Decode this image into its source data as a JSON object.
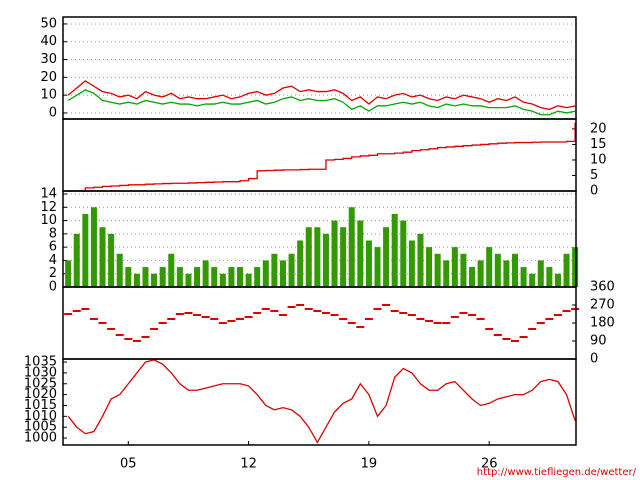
{
  "chart_data": [
    {
      "type": "line",
      "grid": true,
      "y_axis_side": "left",
      "xlim": [
        1.2,
        31.05
      ],
      "ylim": [
        -3.4,
        53.9
      ],
      "yticks": [
        0,
        10,
        20,
        30,
        40,
        50
      ],
      "x": [
        1.5,
        2,
        2.5,
        3,
        3.5,
        4,
        4.5,
        5,
        5.5,
        6,
        6.5,
        7,
        7.5,
        8,
        8.5,
        9,
        9.5,
        10,
        10.5,
        11,
        11.5,
        12,
        12.5,
        13,
        13.5,
        14,
        14.5,
        15,
        15.5,
        16,
        16.5,
        17,
        17.5,
        18,
        18.5,
        19,
        19.5,
        20,
        20.5,
        21,
        21.5,
        22,
        22.5,
        23,
        23.5,
        24,
        24.5,
        25,
        25.5,
        26,
        26.5,
        27,
        27.5,
        28,
        28.5,
        29,
        29.5,
        30,
        30.5,
        31
      ],
      "series": [
        {
          "color": "#dd0000",
          "values": [
            10,
            14,
            18,
            15,
            12,
            11,
            9,
            10,
            8,
            12,
            10,
            9,
            11,
            8,
            9,
            8,
            8,
            9,
            10,
            8,
            9,
            11,
            12,
            10,
            11,
            14,
            15,
            12,
            13,
            12,
            12,
            13,
            11,
            7,
            9,
            5,
            9,
            8,
            10,
            11,
            9,
            10,
            8,
            7,
            9,
            8,
            10,
            9,
            8,
            6,
            8,
            7,
            9,
            6,
            5,
            3,
            2,
            4,
            3,
            4
          ]
        },
        {
          "color": "#00aa00",
          "values": [
            7,
            10,
            13,
            11,
            7,
            6,
            5,
            6,
            5,
            7,
            6,
            5,
            6,
            5,
            5,
            4,
            5,
            5,
            6,
            5,
            5,
            6,
            7,
            5,
            6,
            8,
            9,
            7,
            8,
            7,
            7,
            8,
            6,
            2,
            4,
            1,
            4,
            4,
            5,
            6,
            5,
            6,
            4,
            3,
            5,
            4,
            5,
            4,
            4,
            3,
            3,
            3,
            4,
            2,
            1,
            -1,
            -1,
            1,
            0,
            1
          ]
        }
      ]
    },
    {
      "type": "step",
      "grid": false,
      "y_axis_side": "right",
      "xlim": [
        1.2,
        31.05
      ],
      "ylim": [
        0,
        23.2
      ],
      "yticks": [
        0,
        5,
        10,
        15,
        20
      ],
      "x": [
        1.5,
        2,
        2.5,
        3,
        3.5,
        4,
        4.5,
        5,
        5.5,
        6,
        6.5,
        7,
        7.5,
        8,
        8.5,
        9,
        9.5,
        10,
        10.5,
        11,
        11.5,
        12,
        12.5,
        13,
        13.5,
        14,
        14.5,
        15,
        15.5,
        16,
        16.5,
        17,
        17.5,
        18,
        18.5,
        19,
        19.5,
        20,
        20.5,
        21,
        21.5,
        22,
        22.5,
        23,
        23.5,
        24,
        24.5,
        25,
        25.5,
        26,
        26.5,
        27,
        27.5,
        28,
        28.5,
        29,
        29.5,
        30,
        30.5,
        31
      ],
      "series": [
        {
          "color": "#dd0000",
          "values": [
            0,
            0,
            1,
            1.2,
            1.5,
            1.6,
            1.8,
            2,
            2,
            2.2,
            2.3,
            2.4,
            2.5,
            2.5,
            2.6,
            2.7,
            2.8,
            2.9,
            3,
            3,
            3.3,
            4,
            6.5,
            6.6,
            6.7,
            6.8,
            6.8,
            6.9,
            7,
            7,
            10,
            10.2,
            10.5,
            11,
            11.3,
            11.5,
            12,
            12,
            12.2,
            12.5,
            13,
            13.3,
            13.6,
            14,
            14.2,
            14.4,
            14.6,
            14.8,
            15,
            15.2,
            15.4,
            15.5,
            15.6,
            15.6,
            15.7,
            15.8,
            15.8,
            15.8,
            16,
            22
          ]
        }
      ]
    },
    {
      "type": "bar",
      "grid": true,
      "y_axis_side": "left",
      "xlim": [
        1.2,
        31.05
      ],
      "ylim": [
        0,
        14.45
      ],
      "yticks": [
        0,
        2,
        4,
        6,
        8,
        10,
        12,
        14
      ],
      "x": [
        1.5,
        2,
        2.5,
        3,
        3.5,
        4,
        4.5,
        5,
        5.5,
        6,
        6.5,
        7,
        7.5,
        8,
        8.5,
        9,
        9.5,
        10,
        10.5,
        11,
        11.5,
        12,
        12.5,
        13,
        13.5,
        14,
        14.5,
        15,
        15.5,
        16,
        16.5,
        17,
        17.5,
        18,
        18.5,
        19,
        19.5,
        20,
        20.5,
        21,
        21.5,
        22,
        22.5,
        23,
        23.5,
        24,
        24.5,
        25,
        25.5,
        26,
        26.5,
        27,
        27.5,
        28,
        28.5,
        29,
        29.5,
        30,
        30.5,
        31
      ],
      "series": [
        {
          "color": "#339900",
          "values": [
            4,
            8,
            11,
            12,
            9,
            8,
            5,
            3,
            2,
            3,
            2,
            3,
            5,
            3,
            2,
            3,
            4,
            3,
            2,
            3,
            3,
            2,
            3,
            4,
            5,
            4,
            5,
            7,
            9,
            9,
            8,
            10,
            9,
            12,
            10,
            7,
            6,
            9,
            11,
            10,
            7,
            8,
            6,
            5,
            4,
            6,
            5,
            3,
            4,
            6,
            5,
            4,
            5,
            3,
            2,
            4,
            3,
            2,
            5,
            6
          ]
        }
      ]
    },
    {
      "type": "scatter",
      "grid": false,
      "y_axis_side": "right",
      "xlim": [
        1.2,
        31.05
      ],
      "ylim": [
        0,
        360
      ],
      "yticks": [
        0,
        90,
        180,
        270,
        360
      ],
      "x": [
        1.5,
        2,
        2.5,
        3,
        3.5,
        4,
        4.5,
        5,
        5.5,
        6,
        6.5,
        7,
        7.5,
        8,
        8.5,
        9,
        9.5,
        10,
        10.5,
        11,
        11.5,
        12,
        12.5,
        13,
        13.5,
        14,
        14.5,
        15,
        15.5,
        16,
        16.5,
        17,
        17.5,
        18,
        18.5,
        19,
        19.5,
        20,
        20.5,
        21,
        21.5,
        22,
        22.5,
        23,
        23.5,
        24,
        24.5,
        25,
        25.5,
        26,
        26.5,
        27,
        27.5,
        28,
        28.5,
        29,
        29.5,
        30,
        30.5,
        31
      ],
      "series": [
        {
          "color": "#dd0000",
          "values": [
            225,
            240,
            250,
            200,
            180,
            150,
            120,
            100,
            90,
            110,
            150,
            180,
            200,
            225,
            230,
            220,
            210,
            200,
            180,
            190,
            200,
            210,
            230,
            250,
            240,
            220,
            260,
            270,
            250,
            240,
            230,
            220,
            200,
            180,
            160,
            200,
            250,
            270,
            240,
            230,
            220,
            200,
            190,
            180,
            180,
            210,
            230,
            220,
            200,
            150,
            120,
            100,
            90,
            110,
            150,
            180,
            200,
            220,
            240,
            250
          ]
        }
      ]
    },
    {
      "type": "line",
      "grid": false,
      "y_axis_side": "left",
      "xlim": [
        1.2,
        31.05
      ],
      "ylim": [
        996.8,
        1036.4
      ],
      "yticks": [
        1000,
        1005,
        1010,
        1015,
        1020,
        1025,
        1030,
        1035
      ],
      "xticks": [
        {
          "value": 5,
          "label": "05"
        },
        12,
        19,
        26
      ],
      "x": [
        1.5,
        2,
        2.5,
        3,
        3.5,
        4,
        4.5,
        5,
        5.5,
        6,
        6.5,
        7,
        7.5,
        8,
        8.5,
        9,
        9.5,
        10,
        10.5,
        11,
        11.5,
        12,
        12.5,
        13,
        13.5,
        14,
        14.5,
        15,
        15.5,
        16,
        16.5,
        17,
        17.5,
        18,
        18.5,
        19,
        19.5,
        20,
        20.5,
        21,
        21.5,
        22,
        22.5,
        23,
        23.5,
        24,
        24.5,
        25,
        25.5,
        26,
        26.5,
        27,
        27.5,
        28,
        28.5,
        29,
        29.5,
        30,
        30.5,
        31
      ],
      "series": [
        {
          "color": "#dd0000",
          "values": [
            1010,
            1005,
            1002,
            1003,
            1010,
            1018,
            1020,
            1025,
            1030,
            1035,
            1036,
            1034,
            1030,
            1025,
            1022,
            1022,
            1023,
            1024,
            1025,
            1025,
            1025,
            1024,
            1020,
            1015,
            1013,
            1014,
            1013,
            1010,
            1005,
            998,
            1005,
            1012,
            1016,
            1018,
            1025,
            1020,
            1010,
            1015,
            1028,
            1032,
            1030,
            1025,
            1022,
            1022,
            1025,
            1026,
            1022,
            1018,
            1015,
            1016,
            1018,
            1019,
            1020,
            1020,
            1022,
            1026,
            1027,
            1026,
            1020,
            1008
          ]
        }
      ]
    }
  ],
  "footer": "http://www.tiefliegen.de/wetter/"
}
